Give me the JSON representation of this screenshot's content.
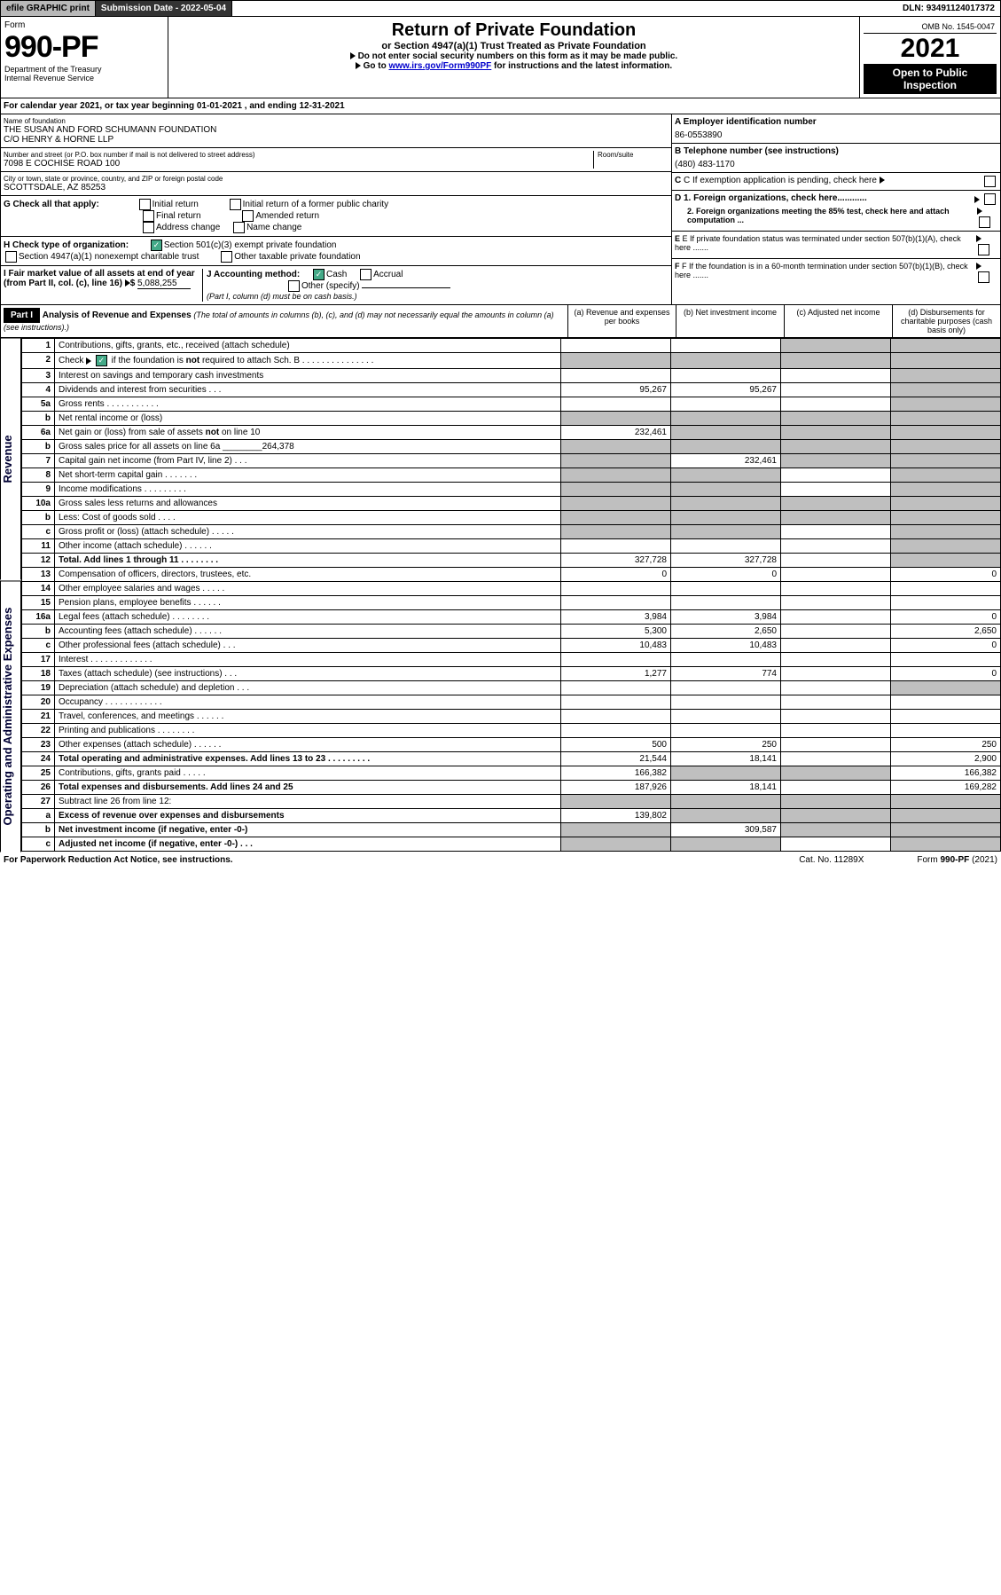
{
  "topbar": {
    "efile": "efile GRAPHIC print",
    "subdate_label": "Submission Date - ",
    "subdate": "2022-05-04",
    "dln_label": "DLN: ",
    "dln": "93491124017372"
  },
  "header": {
    "form_label": "Form",
    "form_no": "990-PF",
    "dept": "Department of the Treasury",
    "irs": "Internal Revenue Service",
    "title": "Return of Private Foundation",
    "subtitle": "or Section 4947(a)(1) Trust Treated as Private Foundation",
    "warn": "Do not enter social security numbers on this form as it may be made public.",
    "goto_pre": "Go to ",
    "goto_link": "www.irs.gov/Form990PF",
    "goto_post": " for instructions and the latest information.",
    "omb": "OMB No. 1545-0047",
    "year": "2021",
    "open": "Open to Public Inspection"
  },
  "calyear": {
    "pre": "For calendar year 2021, or tax year beginning ",
    "begin": "01-01-2021",
    "mid": " , and ending ",
    "end": "12-31-2021"
  },
  "id": {
    "name_lbl": "Name of foundation",
    "name1": "THE SUSAN AND FORD SCHUMANN FOUNDATION",
    "name2": "C/O HENRY & HORNE LLP",
    "addr_lbl": "Number and street (or P.O. box number if mail is not delivered to street address)",
    "room_lbl": "Room/suite",
    "addr": "7098 E COCHISE ROAD 100",
    "city_lbl": "City or town, state or province, country, and ZIP or foreign postal code",
    "city": "SCOTTSDALE, AZ  85253",
    "ein_lbl": "A Employer identification number",
    "ein": "86-0553890",
    "tel_lbl": "B Telephone number (see instructions)",
    "tel": "(480) 483-1170",
    "c_lbl": "C If exemption application is pending, check here",
    "d1": "D 1. Foreign organizations, check here............",
    "d2": "2. Foreign organizations meeting the 85% test, check here and attach computation ...",
    "e": "E If private foundation status was terminated under section 507(b)(1)(A), check here .......",
    "f": "F If the foundation is in a 60-month termination under section 507(b)(1)(B), check here ......."
  },
  "g": {
    "lbl": "G Check all that apply:",
    "o1": "Initial return",
    "o2": "Initial return of a former public charity",
    "o3": "Final return",
    "o4": "Amended return",
    "o5": "Address change",
    "o6": "Name change"
  },
  "h": {
    "lbl": "H Check type of organization:",
    "o1": "Section 501(c)(3) exempt private foundation",
    "o2": "Section 4947(a)(1) nonexempt charitable trust",
    "o3": "Other taxable private foundation"
  },
  "i": {
    "lbl": "I Fair market value of all assets at end of year (from Part II, col. (c), line 16) ",
    "val": "5,088,255"
  },
  "j": {
    "lbl": "J Accounting method:",
    "o1": "Cash",
    "o2": "Accrual",
    "o3": "Other (specify)",
    "note": "(Part I, column (d) must be on cash basis.)"
  },
  "part1": {
    "part": "Part I",
    "title": "Analysis of Revenue and Expenses ",
    "title_note": "(The total of amounts in columns (b), (c), and (d) may not necessarily equal the amounts in column (a) (see instructions).)",
    "cola": "(a) Revenue and expenses per books",
    "colb": "(b) Net investment income",
    "colc": "(c) Adjusted net income",
    "cold": "(d) Disbursements for charitable purposes (cash basis only)"
  },
  "sections": {
    "rev": "Revenue",
    "oae": "Operating and Administrative Expenses"
  },
  "rows": [
    {
      "n": "1",
      "t": "Contributions, gifts, grants, etc., received (attach schedule)",
      "a": "",
      "b": "",
      "c": "s",
      "d": "s"
    },
    {
      "n": "2",
      "t": "Check ▶ ☑ if the foundation is not required to attach Sch. B    .   .   .   .   .   .   .   .   .   .   .   .   .   .   .",
      "a": "s",
      "b": "s",
      "c": "s",
      "d": "s"
    },
    {
      "n": "3",
      "t": "Interest on savings and temporary cash investments",
      "a": "",
      "b": "",
      "c": "",
      "d": "s"
    },
    {
      "n": "4",
      "t": "Dividends and interest from securities    .   .   .",
      "a": "95,267",
      "b": "95,267",
      "c": "",
      "d": "s"
    },
    {
      "n": "5a",
      "t": "Gross rents    .   .   .   .   .   .   .   .   .   .   .",
      "a": "",
      "b": "",
      "c": "",
      "d": "s"
    },
    {
      "n": "b",
      "t": "Net rental income or (loss)  ",
      "a": "s",
      "b": "s",
      "c": "s",
      "d": "s"
    },
    {
      "n": "6a",
      "t": "Net gain or (loss) from sale of assets not on line 10",
      "a": "232,461",
      "b": "s",
      "c": "s",
      "d": "s"
    },
    {
      "n": "b",
      "t": "Gross sales price for all assets on line 6a ________264,378",
      "a": "s",
      "b": "s",
      "c": "s",
      "d": "s"
    },
    {
      "n": "7",
      "t": "Capital gain net income (from Part IV, line 2)   .   .   .",
      "a": "s",
      "b": "232,461",
      "c": "s",
      "d": "s"
    },
    {
      "n": "8",
      "t": "Net short-term capital gain   .   .   .   .   .   .   .",
      "a": "s",
      "b": "s",
      "c": "",
      "d": "s"
    },
    {
      "n": "9",
      "t": "Income modifications  .   .   .   .   .   .   .   .   .",
      "a": "s",
      "b": "s",
      "c": "",
      "d": "s"
    },
    {
      "n": "10a",
      "t": "Gross sales less returns and allowances",
      "a": "s",
      "b": "s",
      "c": "s",
      "d": "s"
    },
    {
      "n": "b",
      "t": "Less: Cost of goods sold    .   .   .   .",
      "a": "s",
      "b": "s",
      "c": "s",
      "d": "s"
    },
    {
      "n": "c",
      "t": "Gross profit or (loss) (attach schedule)    .   .   .   .   .",
      "a": "s",
      "b": "s",
      "c": "",
      "d": "s"
    },
    {
      "n": "11",
      "t": "Other income (attach schedule)    .   .   .   .   .   .",
      "a": "",
      "b": "",
      "c": "",
      "d": "s"
    },
    {
      "n": "12",
      "t": "Total. Add lines 1 through 11   .   .   .   .   .   .   .   .",
      "a": "327,728",
      "b": "327,728",
      "c": "",
      "d": "s",
      "bold": true
    },
    {
      "n": "13",
      "t": "Compensation of officers, directors, trustees, etc.",
      "a": "0",
      "b": "0",
      "c": "",
      "d": "0"
    },
    {
      "n": "14",
      "t": "Other employee salaries and wages   .   .   .   .   .",
      "a": "",
      "b": "",
      "c": "",
      "d": ""
    },
    {
      "n": "15",
      "t": "Pension plans, employee benefits  .   .   .   .   .   .",
      "a": "",
      "b": "",
      "c": "",
      "d": ""
    },
    {
      "n": "16a",
      "t": "Legal fees (attach schedule)  .   .   .   .   .   .   .   .",
      "a": "3,984",
      "b": "3,984",
      "c": "",
      "d": "0"
    },
    {
      "n": "b",
      "t": "Accounting fees (attach schedule)  .   .   .   .   .   .",
      "a": "5,300",
      "b": "2,650",
      "c": "",
      "d": "2,650"
    },
    {
      "n": "c",
      "t": "Other professional fees (attach schedule)    .   .   .",
      "a": "10,483",
      "b": "10,483",
      "c": "",
      "d": "0"
    },
    {
      "n": "17",
      "t": "Interest  .   .   .   .   .   .   .   .   .   .   .   .   .",
      "a": "",
      "b": "",
      "c": "",
      "d": ""
    },
    {
      "n": "18",
      "t": "Taxes (attach schedule) (see instructions)    .   .   .",
      "a": "1,277",
      "b": "774",
      "c": "",
      "d": "0"
    },
    {
      "n": "19",
      "t": "Depreciation (attach schedule) and depletion   .   .   .",
      "a": "",
      "b": "",
      "c": "",
      "d": "s"
    },
    {
      "n": "20",
      "t": "Occupancy  .   .   .   .   .   .   .   .   .   .   .   .",
      "a": "",
      "b": "",
      "c": "",
      "d": ""
    },
    {
      "n": "21",
      "t": "Travel, conferences, and meetings  .   .   .   .   .   .",
      "a": "",
      "b": "",
      "c": "",
      "d": ""
    },
    {
      "n": "22",
      "t": "Printing and publications  .   .   .   .   .   .   .   .",
      "a": "",
      "b": "",
      "c": "",
      "d": ""
    },
    {
      "n": "23",
      "t": "Other expenses (attach schedule)  .   .   .   .   .   .",
      "a": "500",
      "b": "250",
      "c": "",
      "d": "250"
    },
    {
      "n": "24",
      "t": "Total operating and administrative expenses. Add lines 13 to 23   .   .   .   .   .   .   .   .   .",
      "a": "21,544",
      "b": "18,141",
      "c": "",
      "d": "2,900",
      "bold": true
    },
    {
      "n": "25",
      "t": "Contributions, gifts, grants paid    .   .   .   .   .",
      "a": "166,382",
      "b": "s",
      "c": "s",
      "d": "166,382"
    },
    {
      "n": "26",
      "t": "Total expenses and disbursements. Add lines 24 and 25",
      "a": "187,926",
      "b": "18,141",
      "c": "",
      "d": "169,282",
      "bold": true
    },
    {
      "n": "27",
      "t": "Subtract line 26 from line 12:",
      "a": "s",
      "b": "s",
      "c": "s",
      "d": "s"
    },
    {
      "n": "a",
      "t": "Excess of revenue over expenses and disbursements",
      "a": "139,802",
      "b": "s",
      "c": "s",
      "d": "s",
      "bold": true
    },
    {
      "n": "b",
      "t": "Net investment income (if negative, enter -0-)",
      "a": "s",
      "b": "309,587",
      "c": "s",
      "d": "s",
      "bold": true
    },
    {
      "n": "c",
      "t": "Adjusted net income (if negative, enter -0-)   .   .   .",
      "a": "s",
      "b": "s",
      "c": "",
      "d": "s",
      "bold": true
    }
  ],
  "footer": {
    "l": "For Paperwork Reduction Act Notice, see instructions.",
    "m": "Cat. No. 11289X",
    "r": "Form 990-PF (2021)"
  },
  "colors": {
    "shade": "#bfbfbf",
    "check": "#4a8f4a"
  }
}
